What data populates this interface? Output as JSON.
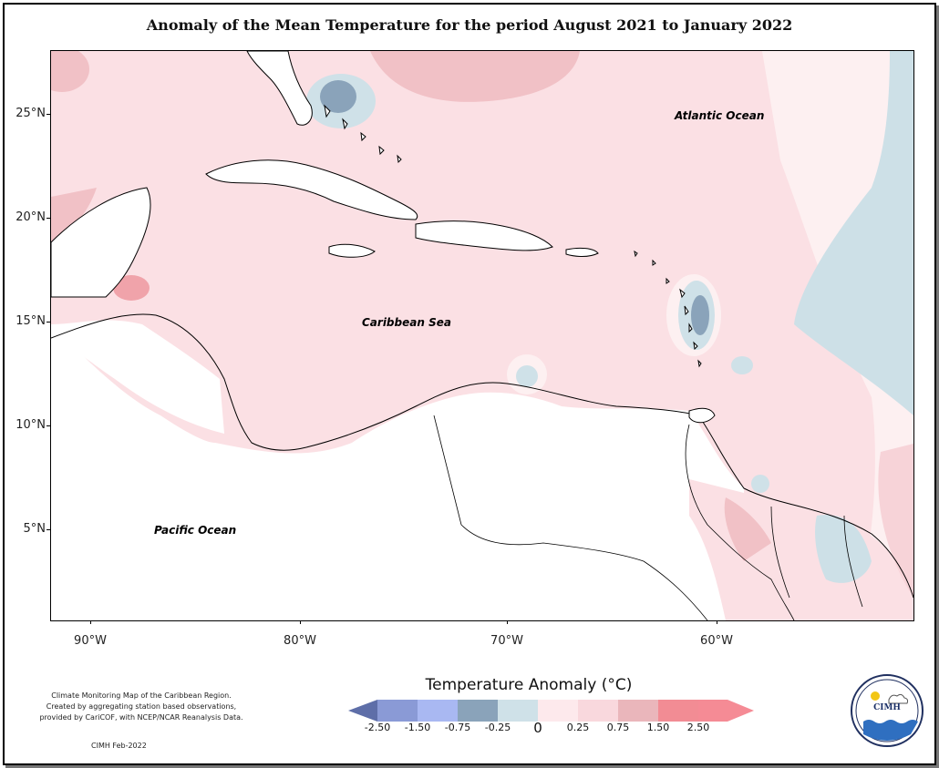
{
  "title": "Anomaly of the Mean Temperature for the period August 2021 to January 2022",
  "labels": {
    "atlantic": "Atlantic Ocean",
    "caribbean": "Caribbean Sea",
    "pacific": "Pacific Ocean"
  },
  "lat_ticks": [
    "25°N",
    "20°N",
    "15°N",
    "10°N",
    "5°N"
  ],
  "lon_ticks": [
    "90°W",
    "80°W",
    "70°W",
    "60°W"
  ],
  "legend": {
    "title": "Temperature Anomaly (°C)",
    "ticks": [
      "-2.50",
      "-1.50",
      "-0.75",
      "-0.25",
      "0",
      "0.25",
      "0.75",
      "1.50",
      "2.50"
    ],
    "colors": [
      "#5e6ea8",
      "#8a9ad6",
      "#a9b8f2",
      "#8aa3ba",
      "#cfe1e8",
      "#fde9ec",
      "#f9d8dd",
      "#eab6bb",
      "#f28c94",
      "#f58b95"
    ]
  },
  "notes": {
    "line1": "Climate Monitoring Map of the Caribbean Region.",
    "line2": "Created by aggregating station based observations,",
    "line3": "provided by CariCOF, with NCEP/NCAR Reanalysis Data.",
    "credit": "CIMH Feb-2022"
  },
  "logo": {
    "text": "CIMH"
  }
}
